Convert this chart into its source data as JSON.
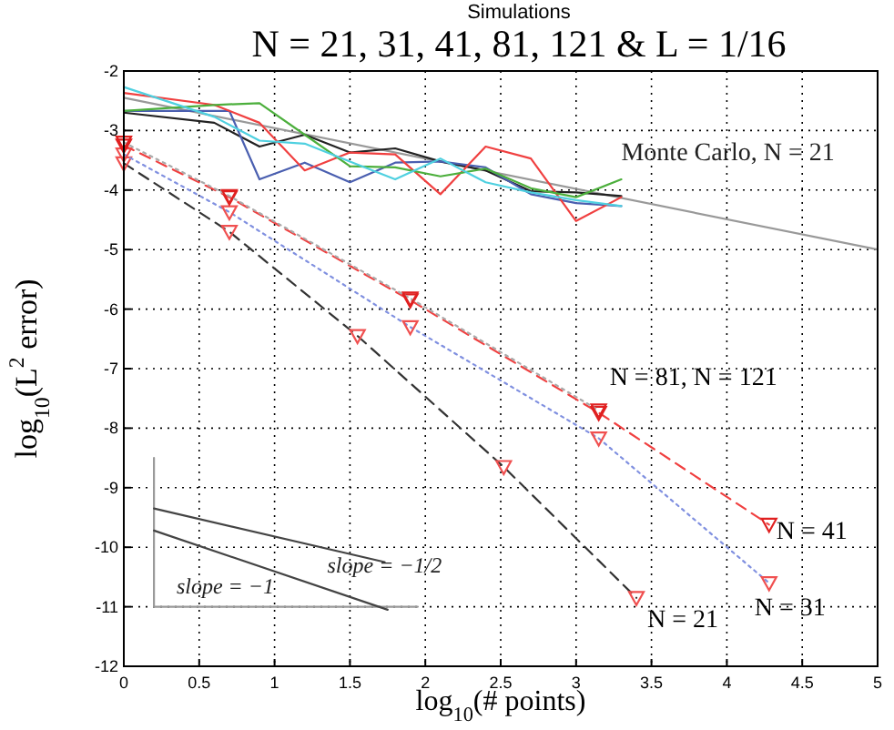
{
  "chart_data": {
    "type": "line",
    "subtitle": "Simulations",
    "title": "N = 21, 31, 41, 81, 121 & L = 1/16",
    "xlabel": "log$_{10}$(# points)",
    "ylabel": "log$_{10}$(L$^{2}$ error)",
    "xlim": [
      0,
      5
    ],
    "ylim": [
      -12,
      -2
    ],
    "xticks": [
      0,
      0.5,
      1,
      1.5,
      2,
      2.5,
      3,
      3.5,
      4,
      4.5,
      5
    ],
    "yticks": [
      -12,
      -11,
      -10,
      -9,
      -8,
      -7,
      -6,
      -5,
      -4,
      -3,
      -2
    ],
    "grid": true,
    "marker": "triangle",
    "series": [
      {
        "color": "#999999",
        "marker": "none",
        "line_style": "solid",
        "x": [
          0,
          5
        ],
        "values": [
          -2.45,
          -5.0
        ]
      },
      {
        "color": "#222222",
        "marker": "none",
        "line_style": "solid",
        "x": [
          0,
          0.6,
          0.9,
          1.2,
          1.5,
          1.8,
          2.1,
          2.4,
          2.7,
          3.0,
          3.3
        ],
        "values": [
          -2.7,
          -2.87,
          -3.27,
          -3.07,
          -3.37,
          -3.3,
          -3.52,
          -3.67,
          -4.02,
          -4.04,
          -4.1
        ]
      },
      {
        "color": "#4a5fb0",
        "marker": "none",
        "line_style": "solid",
        "x": [
          0,
          0.7,
          0.9,
          1.2,
          1.5,
          1.8,
          2.1,
          2.4,
          2.7,
          3.0,
          3.3
        ],
        "values": [
          -2.67,
          -2.67,
          -3.82,
          -3.54,
          -3.87,
          -3.54,
          -3.52,
          -3.62,
          -4.07,
          -4.22,
          -4.27
        ]
      },
      {
        "color": "#f04040",
        "marker": "none",
        "line_style": "solid",
        "x": [
          0,
          0.6,
          0.9,
          1.2,
          1.5,
          1.8,
          2.1,
          2.4,
          2.7,
          3.0,
          3.3
        ],
        "values": [
          -2.37,
          -2.57,
          -2.87,
          -3.67,
          -3.37,
          -3.4,
          -4.07,
          -3.27,
          -3.47,
          -4.52,
          -4.12
        ]
      },
      {
        "color": "#4caf3c",
        "marker": "none",
        "line_style": "solid",
        "x": [
          0,
          0.6,
          0.9,
          1.2,
          1.5,
          1.8,
          2.1,
          2.4,
          2.7,
          3.0,
          3.3
        ],
        "values": [
          -2.67,
          -2.57,
          -2.54,
          -3.07,
          -3.6,
          -3.62,
          -3.77,
          -3.64,
          -3.97,
          -4.12,
          -3.82
        ]
      },
      {
        "color": "#4fd0e0",
        "marker": "none",
        "line_style": "solid",
        "x": [
          0,
          0.6,
          0.9,
          1.2,
          1.5,
          1.8,
          2.1,
          2.4,
          2.7,
          3.0,
          3.3
        ],
        "values": [
          -2.27,
          -2.77,
          -3.17,
          -3.22,
          -3.52,
          -3.82,
          -3.47,
          -3.87,
          -4.04,
          -4.17,
          -4.27
        ]
      },
      {
        "name": "N = 21",
        "color": "#333333",
        "line_style": "dashed",
        "colors": [
          "#f05050",
          "#f05050",
          "#f05050",
          "#f05050",
          "#f05050"
        ],
        "x": [
          0,
          0.7,
          1.55,
          2.52,
          3.4
        ],
        "values": [
          -3.55,
          -4.7,
          -6.45,
          -8.65,
          -10.85
        ]
      },
      {
        "name": "N = 31",
        "color": "#8090e0",
        "line_style": "dotted",
        "colors": [
          "#f05050",
          "#f05050",
          "#f05050",
          "#f05050",
          "#f05050"
        ],
        "x": [
          0,
          0.7,
          1.9,
          3.15,
          4.28
        ],
        "values": [
          -3.4,
          -4.37,
          -6.3,
          -8.17,
          -10.6
        ]
      },
      {
        "name": "N = 41",
        "color": "#f04040",
        "line_style": "dashed",
        "colors": [
          "#e02020",
          "#e02020",
          "#e02020",
          "#e02020",
          "#e02020"
        ],
        "x": [
          0,
          0.7,
          1.9,
          3.15,
          4.28
        ],
        "values": [
          -3.25,
          -4.12,
          -5.85,
          -7.74,
          -9.62
        ]
      },
      {
        "name": "N = 81, N = 121",
        "color": "#aaaaaa",
        "line_style": "dotted",
        "colors": [
          "#e02020",
          "#e02020",
          "#e02020",
          "#e02020"
        ],
        "x": [
          0,
          0.7,
          1.9,
          3.15
        ],
        "values": [
          -3.2,
          -4.1,
          -5.82,
          -7.7
        ]
      },
      {
        "color": "#999999",
        "marker": "none",
        "line_style": "solid",
        "x": [
          0.2,
          0.2,
          1.95
        ],
        "values": [
          -8.5,
          -11,
          -11
        ]
      },
      {
        "color": "#444444",
        "marker": "none",
        "line_style": "solid",
        "x": [
          0.2,
          1.73
        ],
        "values": [
          -9.35,
          -10.25
        ]
      },
      {
        "color": "#444444",
        "marker": "none",
        "line_style": "solid",
        "x": [
          0.2,
          1.75
        ],
        "values": [
          -9.72,
          -11.05
        ]
      }
    ],
    "annotations": [
      "Monte Carlo, N = 21",
      "slope = −1/2",
      "slope = −1"
    ]
  }
}
